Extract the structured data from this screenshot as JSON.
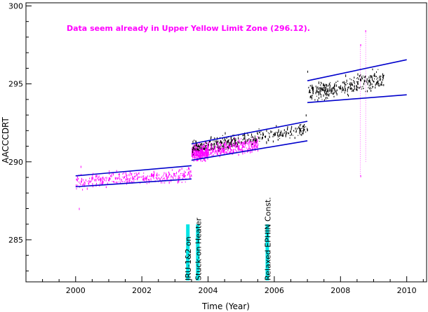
{
  "chart_data": {
    "type": "scatter",
    "xlabel": "Time (Year)",
    "ylabel": "AACCCDRT",
    "xlim": [
      1998.5,
      2010.6
    ],
    "ylim": [
      282.3,
      300.2
    ],
    "xticks": [
      2000,
      2002,
      2004,
      2006,
      2008,
      2010
    ],
    "yticks": [
      285,
      290,
      295,
      300
    ],
    "annotations": [
      {
        "text": "Data seem already in Upper Yellow  Limit Zone (296.12).",
        "color": "#ff00ff"
      }
    ],
    "event_markers": [
      {
        "label": "IRU-1&2 on",
        "x": 2003.4,
        "color": "#00e5e5"
      },
      {
        "label": "Stuck-on Heater",
        "x": 2003.7,
        "color": "#00e5e5"
      },
      {
        "label": "Relaxed EPHIN Const.",
        "x": 2005.8,
        "color": "#00e5e5"
      }
    ],
    "series": [
      {
        "name": "",
        "color": "#ff00ff",
        "segments": [
          {
            "x": [
              2000.0,
              2003.5
            ],
            "y_mean": [
              288.7,
              289.2
            ],
            "spread": 0.35
          },
          {
            "x": [
              2003.5,
              2004.0
            ],
            "y_mean": [
              290.5,
              290.7
            ],
            "spread": 0.4
          },
          {
            "x": [
              2004.0,
              2005.5
            ],
            "y_mean": [
              290.8,
              291.1
            ],
            "spread": 0.35
          }
        ],
        "outliers": [
          [
            2000.1,
            287.0
          ],
          [
            2000.15,
            289.7
          ],
          [
            2008.6,
            289.1
          ],
          [
            2008.6,
            297.5
          ],
          [
            2008.75,
            298.4
          ]
        ]
      },
      {
        "name": "",
        "color": "#000000",
        "segments": [
          {
            "x": [
              2003.5,
              2007.0
            ],
            "y_mean": [
              290.9,
              292.1
            ],
            "spread": 0.35
          },
          {
            "x": [
              2007.0,
              2009.3
            ],
            "y_mean": [
              294.4,
              295.3
            ],
            "spread": 0.45
          }
        ],
        "outliers": [
          [
            2006.95,
            293.0
          ],
          [
            2007.0,
            295.8
          ]
        ]
      }
    ],
    "limit_lines": [
      {
        "color": "#0000cc",
        "x": [
          2000.0,
          2003.5
        ],
        "y": [
          289.1,
          289.75
        ]
      },
      {
        "color": "#0000cc",
        "x": [
          2000.0,
          2003.5
        ],
        "y": [
          288.4,
          288.9
        ]
      },
      {
        "color": "#0000cc",
        "x": [
          2003.5,
          2007.0
        ],
        "y": [
          291.15,
          292.6
        ]
      },
      {
        "color": "#0000cc",
        "x": [
          2003.5,
          2007.0
        ],
        "y": [
          290.1,
          291.35
        ]
      },
      {
        "color": "#0000cc",
        "x": [
          2007.0,
          2010.0
        ],
        "y": [
          295.2,
          296.55
        ]
      },
      {
        "color": "#0000cc",
        "x": [
          2007.0,
          2010.0
        ],
        "y": [
          293.8,
          294.3
        ]
      }
    ]
  }
}
